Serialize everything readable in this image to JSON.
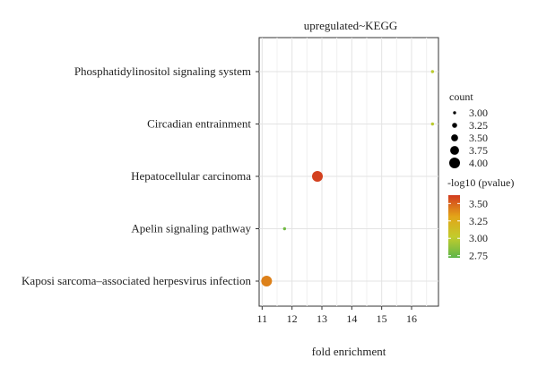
{
  "chart_data": {
    "type": "scatter",
    "title": "upregulated~KEGG",
    "xlabel": "fold enrichment",
    "ylabel": "",
    "xlim": [
      10.9,
      16.9
    ],
    "xticks": [
      11,
      12,
      13,
      14,
      15,
      16
    ],
    "grid": true,
    "categories": [
      "Phosphatidylinositol signaling system",
      "Circadian entrainment",
      "Hepatocellular carcinoma",
      "Apelin signaling pathway",
      "Kaposi sarcoma–associated herpesvirus infection"
    ],
    "points": [
      {
        "term": "Phosphatidylinositol signaling system",
        "fold_enrichment": 16.7,
        "count": 3,
        "neg_log10_pvalue": 3.0
      },
      {
        "term": "Circadian entrainment",
        "fold_enrichment": 16.7,
        "count": 3,
        "neg_log10_pvalue": 3.0
      },
      {
        "term": "Hepatocellular carcinoma",
        "fold_enrichment": 12.85,
        "count": 4,
        "neg_log10_pvalue": 3.6
      },
      {
        "term": "Apelin signaling pathway",
        "fold_enrichment": 11.75,
        "count": 3,
        "neg_log10_pvalue": 2.78
      },
      {
        "term": "Kaposi sarcoma–associated herpesvirus infection",
        "fold_enrichment": 11.15,
        "count": 4,
        "neg_log10_pvalue": 3.42
      }
    ],
    "legend": {
      "placement": "right",
      "size": {
        "title": "count",
        "values": [
          3.0,
          3.25,
          3.5,
          3.75,
          4.0
        ],
        "labels": [
          "3.00",
          "3.25",
          "3.50",
          "3.75",
          "4.00"
        ]
      },
      "color": {
        "title": "-log10 (pvalue)",
        "range": [
          2.72,
          3.62
        ],
        "ticks": [
          2.75,
          3.0,
          3.25,
          3.5
        ],
        "labels": [
          "2.75",
          "3.00",
          "3.25",
          "3.50"
        ],
        "colors": [
          "#5db64a",
          "#c2cc2c",
          "#e3a418",
          "#d23a1f"
        ]
      }
    }
  }
}
